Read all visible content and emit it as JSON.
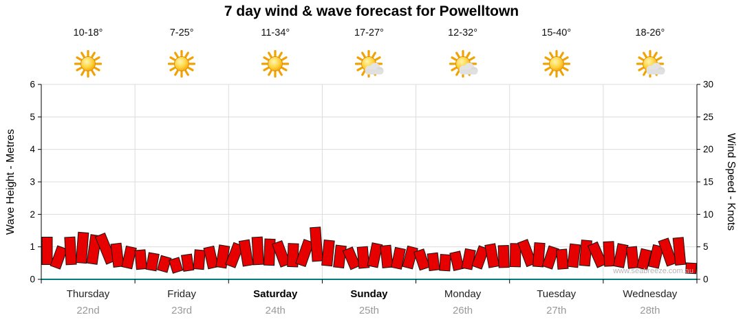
{
  "title": "7 day wind & wave forecast for Powelltown",
  "watermark": "www.seabreeze.com.au",
  "axes": {
    "left_label": "Wave Height - Metres",
    "right_label": "Wind Speed - Knots",
    "left_ticks": [
      0,
      1,
      2,
      3,
      4,
      5,
      6
    ],
    "right_ticks": [
      0,
      5,
      10,
      15,
      20,
      25,
      30
    ]
  },
  "days": [
    {
      "name": "Thursday",
      "date": "22nd",
      "temp": "10-18°",
      "icon": "sunny",
      "bold": false
    },
    {
      "name": "Friday",
      "date": "23rd",
      "temp": "7-25°",
      "icon": "sunny",
      "bold": false
    },
    {
      "name": "Saturday",
      "date": "24th",
      "temp": "11-34°",
      "icon": "sunny",
      "bold": true
    },
    {
      "name": "Sunday",
      "date": "25th",
      "temp": "17-27°",
      "icon": "partly-cloudy",
      "bold": true
    },
    {
      "name": "Monday",
      "date": "26th",
      "temp": "12-32°",
      "icon": "partly-cloudy",
      "bold": false
    },
    {
      "name": "Tuesday",
      "date": "27th",
      "temp": "15-40°",
      "icon": "sunny",
      "bold": false
    },
    {
      "name": "Wednesday",
      "date": "28th",
      "temp": "18-26°",
      "icon": "partly-cloudy",
      "bold": false
    }
  ],
  "chart_data": {
    "type": "area",
    "title": "7 day wind & wave forecast for Powelltown",
    "ylabel_left": "Wave Height - Metres",
    "ylabel_right": "Wind Speed - Knots",
    "ylim_left": [
      0,
      6
    ],
    "ylim_right": [
      0,
      30
    ],
    "grid": true,
    "categories": [
      "Thursday 22nd",
      "Friday 23rd",
      "Saturday 24th",
      "Sunday 25th",
      "Monday 26th",
      "Tuesday 27th",
      "Wednesday 28th"
    ],
    "points_per_day": 8,
    "series": [
      {
        "name": "Wind Speed (knots)",
        "values": [
          6.5,
          5.0,
          6.5,
          7.2,
          6.8,
          7.0,
          5.5,
          5.0,
          4.5,
          4.0,
          3.5,
          3.2,
          3.8,
          4.5,
          5.0,
          5.2,
          5.5,
          6.0,
          6.5,
          6.2,
          5.8,
          5.5,
          6.0,
          8.0,
          6.0,
          5.2,
          4.8,
          5.0,
          5.5,
          5.2,
          4.8,
          5.0,
          4.5,
          4.0,
          3.8,
          4.2,
          4.6,
          5.0,
          5.4,
          5.2,
          5.5,
          6.0,
          5.6,
          5.0,
          4.6,
          5.4,
          6.0,
          5.6,
          5.8,
          5.4,
          5.0,
          4.6,
          5.2,
          6.2,
          6.4,
          2.5
        ]
      }
    ],
    "colors": {
      "wind_fill": "#e60000",
      "wind_stroke": "#151515",
      "grid": "#dcdcdc",
      "axis": "#000000",
      "baseline": "#007a7a"
    }
  }
}
